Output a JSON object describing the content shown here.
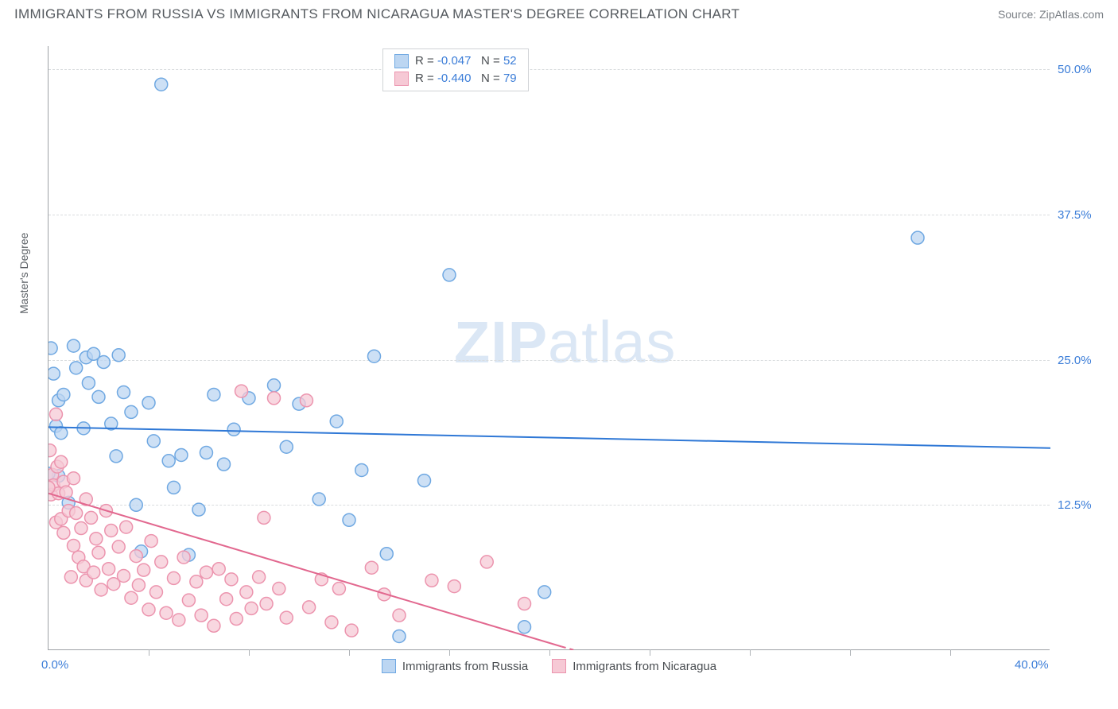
{
  "title": "IMMIGRANTS FROM RUSSIA VS IMMIGRANTS FROM NICARAGUA MASTER'S DEGREE CORRELATION CHART",
  "source_label": "Source: ZipAtlas.com",
  "watermark": {
    "bold": "ZIP",
    "light": "atlas"
  },
  "chart": {
    "type": "scatter",
    "y_axis_label": "Master's Degree",
    "background_color": "#ffffff",
    "grid_color": "#d9dcde",
    "axis_color": "#9ea2a6",
    "xlim": [
      0,
      40
    ],
    "ylim": [
      0,
      52
    ],
    "x_labels": [
      {
        "text": "0.0%",
        "value": 0,
        "color": "#3b7dd8"
      },
      {
        "text": "40.0%",
        "value": 40,
        "color": "#3b7dd8"
      }
    ],
    "y_ticks": [
      {
        "value": 12.5,
        "label": "12.5%",
        "color": "#3b7dd8"
      },
      {
        "value": 25.0,
        "label": "25.0%",
        "color": "#3b7dd8"
      },
      {
        "value": 37.5,
        "label": "37.5%",
        "color": "#3b7dd8"
      },
      {
        "value": 50.0,
        "label": "50.0%",
        "color": "#3b7dd8"
      }
    ],
    "x_tick_positions": [
      4,
      8,
      12,
      16,
      20,
      24,
      28,
      32,
      36
    ],
    "marker_radius": 8,
    "line_width": 2,
    "series": [
      {
        "name": "Immigrants from Russia",
        "R_label": "R = ",
        "R_value": "-0.047",
        "N_label": "N = ",
        "N_value": "52",
        "fill": "#bcd6f2",
        "stroke": "#6fa8e2",
        "line_color": "#2f78d6",
        "trend": {
          "x1": 0,
          "y1": 19.2,
          "x2": 40,
          "y2": 17.4
        },
        "points": [
          [
            0.1,
            26.0
          ],
          [
            0.2,
            23.8
          ],
          [
            0.3,
            19.3
          ],
          [
            0.4,
            21.5
          ],
          [
            0.4,
            15.0
          ],
          [
            0.5,
            18.7
          ],
          [
            0.6,
            22.0
          ],
          [
            0.8,
            12.7
          ],
          [
            1.0,
            26.2
          ],
          [
            1.1,
            24.3
          ],
          [
            1.4,
            19.1
          ],
          [
            1.5,
            25.2
          ],
          [
            1.6,
            23.0
          ],
          [
            1.8,
            25.5
          ],
          [
            2.0,
            21.8
          ],
          [
            2.2,
            24.8
          ],
          [
            2.5,
            19.5
          ],
          [
            2.7,
            16.7
          ],
          [
            2.8,
            25.4
          ],
          [
            3.0,
            22.2
          ],
          [
            3.3,
            20.5
          ],
          [
            3.5,
            12.5
          ],
          [
            3.7,
            8.5
          ],
          [
            4.0,
            21.3
          ],
          [
            4.2,
            18.0
          ],
          [
            4.5,
            48.7
          ],
          [
            4.8,
            16.3
          ],
          [
            5.0,
            14.0
          ],
          [
            5.3,
            16.8
          ],
          [
            5.6,
            8.2
          ],
          [
            6.0,
            12.1
          ],
          [
            6.3,
            17.0
          ],
          [
            6.6,
            22.0
          ],
          [
            7.0,
            16.0
          ],
          [
            7.4,
            19.0
          ],
          [
            8.0,
            21.7
          ],
          [
            9.0,
            22.8
          ],
          [
            9.5,
            17.5
          ],
          [
            10.0,
            21.2
          ],
          [
            10.8,
            13.0
          ],
          [
            11.5,
            19.7
          ],
          [
            12.0,
            11.2
          ],
          [
            12.5,
            15.5
          ],
          [
            13.0,
            25.3
          ],
          [
            13.5,
            8.3
          ],
          [
            14.0,
            1.2
          ],
          [
            15.0,
            14.6
          ],
          [
            16.0,
            32.3
          ],
          [
            19.0,
            2.0
          ],
          [
            19.8,
            5.0
          ],
          [
            34.7,
            35.5
          ],
          [
            0.0,
            15.2
          ]
        ]
      },
      {
        "name": "Immigrants from Nicaragua",
        "R_label": "R = ",
        "R_value": "-0.440",
        "N_label": "N = ",
        "N_value": "79",
        "fill": "#f6c9d5",
        "stroke": "#ec94ae",
        "line_color": "#e2688f",
        "trend": {
          "x1": 0,
          "y1": 13.5,
          "x2": 20.5,
          "y2": 0.3
        },
        "trend_dash": {
          "x1": 20.5,
          "y1": 0.3,
          "x2": 23,
          "y2": -1.2
        },
        "points": [
          [
            0.05,
            17.2
          ],
          [
            0.1,
            13.4
          ],
          [
            0.15,
            15.1
          ],
          [
            0.2,
            14.2
          ],
          [
            0.3,
            11.0
          ],
          [
            0.3,
            20.3
          ],
          [
            0.35,
            15.8
          ],
          [
            0.4,
            13.5
          ],
          [
            0.5,
            16.2
          ],
          [
            0.5,
            11.3
          ],
          [
            0.6,
            10.1
          ],
          [
            0.6,
            14.5
          ],
          [
            0.7,
            13.6
          ],
          [
            0.8,
            12.0
          ],
          [
            0.9,
            6.3
          ],
          [
            1.0,
            14.8
          ],
          [
            1.0,
            9.0
          ],
          [
            1.1,
            11.8
          ],
          [
            1.2,
            8.0
          ],
          [
            1.3,
            10.5
          ],
          [
            1.4,
            7.2
          ],
          [
            1.5,
            13.0
          ],
          [
            1.5,
            6.0
          ],
          [
            1.7,
            11.4
          ],
          [
            1.8,
            6.7
          ],
          [
            1.9,
            9.6
          ],
          [
            2.0,
            8.4
          ],
          [
            2.1,
            5.2
          ],
          [
            2.3,
            12.0
          ],
          [
            2.4,
            7.0
          ],
          [
            2.5,
            10.3
          ],
          [
            2.6,
            5.7
          ],
          [
            2.8,
            8.9
          ],
          [
            3.0,
            6.4
          ],
          [
            3.1,
            10.6
          ],
          [
            3.3,
            4.5
          ],
          [
            3.5,
            8.1
          ],
          [
            3.6,
            5.6
          ],
          [
            3.8,
            6.9
          ],
          [
            4.0,
            3.5
          ],
          [
            4.1,
            9.4
          ],
          [
            4.3,
            5.0
          ],
          [
            4.5,
            7.6
          ],
          [
            4.7,
            3.2
          ],
          [
            5.0,
            6.2
          ],
          [
            5.2,
            2.6
          ],
          [
            5.4,
            8.0
          ],
          [
            5.6,
            4.3
          ],
          [
            5.9,
            5.9
          ],
          [
            6.1,
            3.0
          ],
          [
            6.3,
            6.7
          ],
          [
            6.6,
            2.1
          ],
          [
            6.8,
            7.0
          ],
          [
            7.1,
            4.4
          ],
          [
            7.3,
            6.1
          ],
          [
            7.5,
            2.7
          ],
          [
            7.7,
            22.3
          ],
          [
            7.9,
            5.0
          ],
          [
            8.1,
            3.6
          ],
          [
            8.4,
            6.3
          ],
          [
            8.6,
            11.4
          ],
          [
            8.7,
            4.0
          ],
          [
            9.0,
            21.7
          ],
          [
            9.2,
            5.3
          ],
          [
            9.5,
            2.8
          ],
          [
            10.3,
            21.5
          ],
          [
            10.4,
            3.7
          ],
          [
            10.9,
            6.1
          ],
          [
            11.3,
            2.4
          ],
          [
            11.6,
            5.3
          ],
          [
            12.1,
            1.7
          ],
          [
            12.9,
            7.1
          ],
          [
            13.4,
            4.8
          ],
          [
            14.0,
            3.0
          ],
          [
            15.3,
            6.0
          ],
          [
            16.2,
            5.5
          ],
          [
            17.5,
            7.6
          ],
          [
            19.0,
            4.0
          ],
          [
            0.0,
            14.0
          ]
        ]
      }
    ],
    "bottom_legend_series": [
      "Immigrants from Russia",
      "Immigrants from Nicaragua"
    ]
  }
}
